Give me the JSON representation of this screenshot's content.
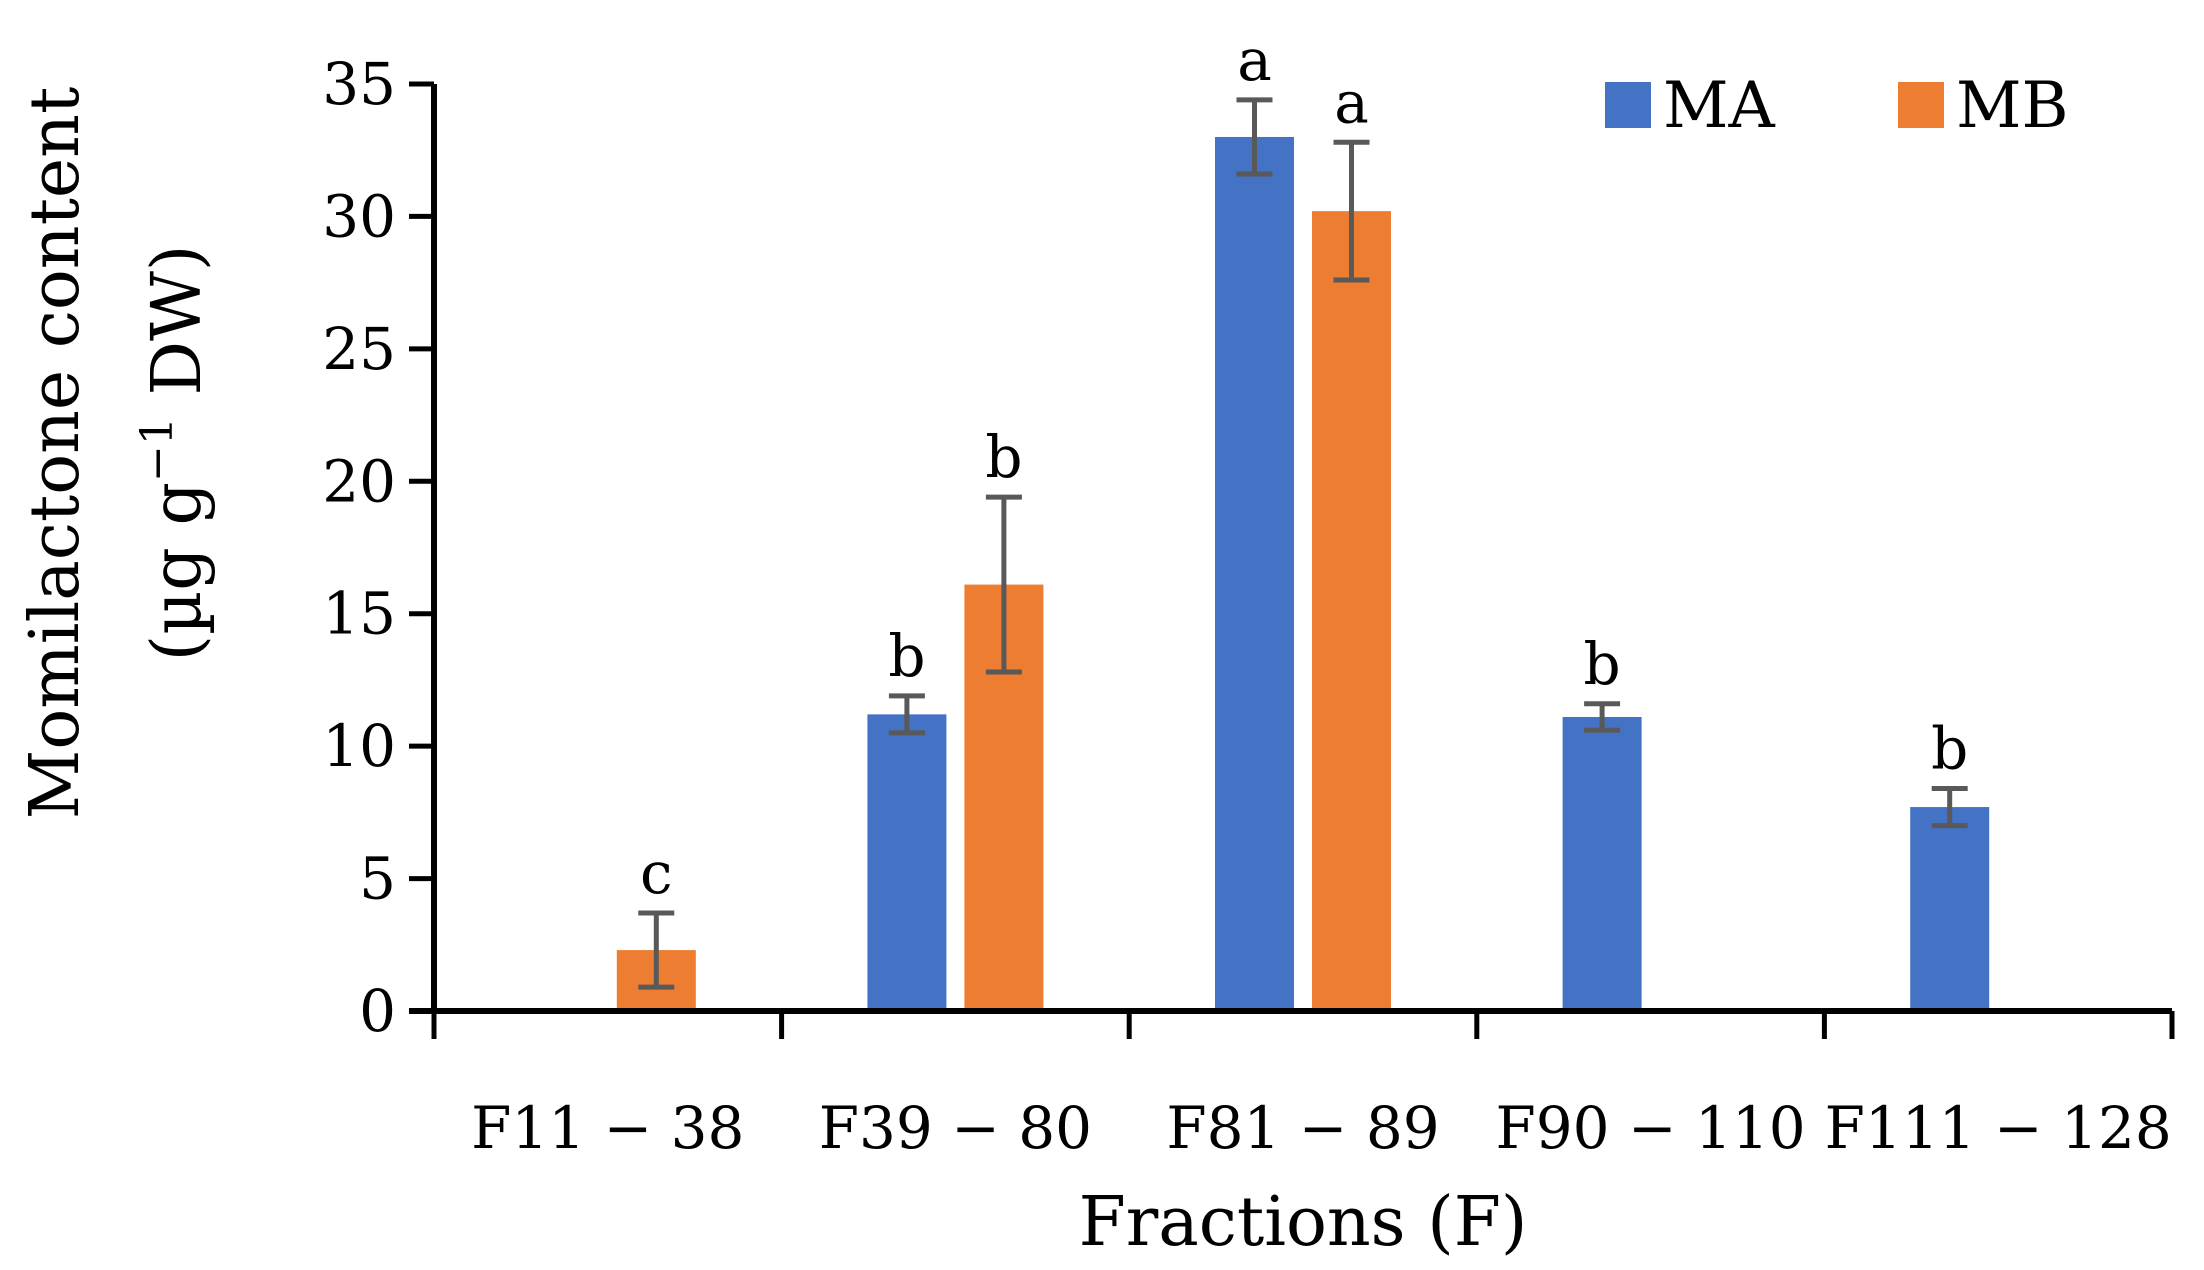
{
  "chart_data": {
    "type": "bar",
    "title": "",
    "xlabel": "Fractions (F)",
    "ylabel_line1": "Momilactone content",
    "ylabel_line2_prefix": "(µg g",
    "ylabel_line2_sup": "−1",
    "ylabel_line2_suffix": " DW)",
    "ylim": [
      0,
      35
    ],
    "yticks": [
      0,
      5,
      10,
      15,
      20,
      25,
      30,
      35
    ],
    "categories": [
      "F11 − 38",
      "F39 − 80",
      "F81 − 89",
      "F90 − 110",
      "F111 − 128"
    ],
    "series": [
      {
        "name": "MA",
        "color": "#4472C4",
        "values": [
          null,
          11.2,
          33.0,
          11.1,
          7.7
        ],
        "error": [
          null,
          0.7,
          1.4,
          0.5,
          0.7
        ],
        "labels": [
          null,
          "b",
          "a",
          "b",
          "b"
        ]
      },
      {
        "name": "MB",
        "color": "#ED7D31",
        "values": [
          2.3,
          16.1,
          30.2,
          null,
          null
        ],
        "error": [
          1.4,
          3.3,
          2.6,
          null,
          null
        ],
        "labels": [
          "c",
          "b",
          "a",
          null,
          null
        ]
      }
    ],
    "error_bar_color": "#595959",
    "legend_position": "top-right"
  }
}
